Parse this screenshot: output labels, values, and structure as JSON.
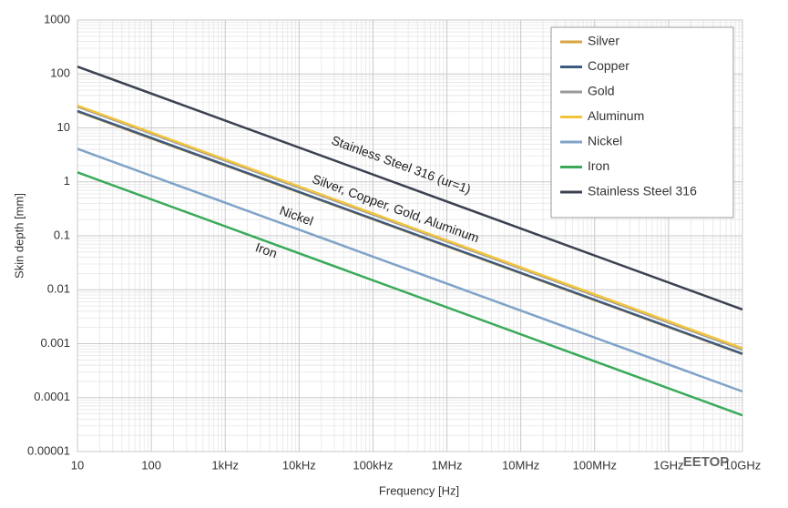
{
  "chart_data": {
    "type": "line",
    "xlabel": "Frequency [Hz]",
    "ylabel": "Skin depth [mm]",
    "xscale": "log",
    "yscale": "log",
    "xlim": [
      10,
      10000000000
    ],
    "ylim": [
      1e-05,
      1000
    ],
    "xticks": [
      10,
      100,
      {
        "value": 1000,
        "label": "1kHz"
      },
      {
        "value": 10000,
        "label": "10kHz"
      },
      {
        "value": 100000,
        "label": "100kHz"
      },
      {
        "value": 1000000,
        "label": "1MHz"
      },
      {
        "value": 10000000,
        "label": "10MHz"
      },
      {
        "value": 100000000,
        "label": "100MHz"
      },
      {
        "value": 1000000000,
        "label": "1GHz"
      },
      {
        "value": 10000000000,
        "label": "10GHz"
      }
    ],
    "yticks": [
      1e-05,
      0.0001,
      0.001,
      0.01,
      0.1,
      1,
      10,
      100,
      1000
    ],
    "grid": true,
    "legend": "upper right",
    "series": [
      {
        "name": "Silver",
        "color": "#d9a441",
        "x": [
          10,
          10000000000
        ],
        "values": [
          20.1,
          0.00064
        ]
      },
      {
        "name": "Copper",
        "color": "#3d5a80",
        "x": [
          10,
          10000000000
        ],
        "values": [
          20.6,
          0.00065
        ]
      },
      {
        "name": "Gold",
        "color": "#9a9a9a",
        "x": [
          10,
          10000000000
        ],
        "values": [
          24.8,
          0.00078
        ]
      },
      {
        "name": "Aluminum",
        "color": "#f2c43d",
        "x": [
          10,
          10000000000
        ],
        "values": [
          25.9,
          0.00082
        ]
      },
      {
        "name": "Nickel",
        "color": "#7fa3c8",
        "x": [
          10,
          10000000000
        ],
        "values": [
          4.1,
          0.00013
        ]
      },
      {
        "name": "Iron",
        "color": "#3aaa5a",
        "x": [
          10,
          10000000000
        ],
        "values": [
          1.5,
          4.7e-05
        ]
      },
      {
        "name": "Stainless Steel 316",
        "color": "#3b4150",
        "x": [
          10,
          10000000000
        ],
        "values": [
          137,
          0.0043
        ]
      }
    ],
    "annotations": [
      "Stainless Steel 316 (ur=1)",
      "Silver, Copper, Gold, Aluminum",
      "Nickel",
      "Iron"
    ],
    "watermark": "EETOP"
  }
}
